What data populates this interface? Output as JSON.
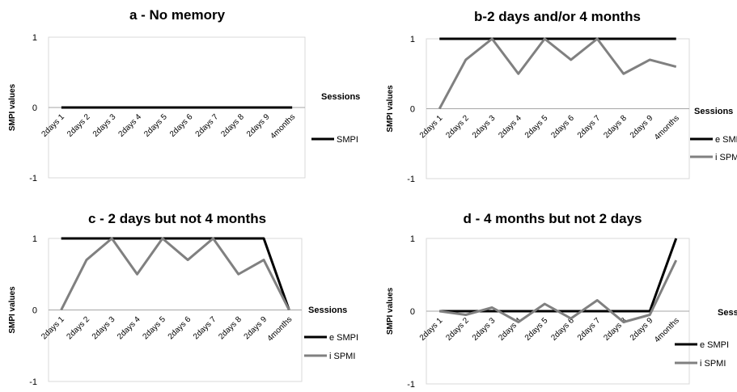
{
  "chart_data": [
    {
      "type": "line",
      "title": "a - No memory",
      "xlabel": "Sessions",
      "ylabel": "SMPI values",
      "categories": [
        "2days 1",
        "2days 2",
        "2days 3",
        "2days 4",
        "2days 5",
        "2days 6",
        "2days 7",
        "2days 8",
        "2days 9",
        "4months"
      ],
      "ylim": [
        -1,
        1
      ],
      "yticks": [
        1,
        0,
        -1
      ],
      "grid": false,
      "legend_position": "right",
      "series": [
        {
          "name": "SMPI",
          "color": "#000000",
          "values": [
            0,
            0,
            0,
            0,
            0,
            0,
            0,
            0,
            0,
            0
          ]
        }
      ]
    },
    {
      "type": "line",
      "title": "b-2 days and/or 4 months",
      "xlabel": "Sessions",
      "ylabel": "SMPI values",
      "categories": [
        "2days 1",
        "2days 2",
        "2days 3",
        "2days 4",
        "2days 5",
        "2days 6",
        "2days 7",
        "2days 8",
        "2days 9",
        "4months"
      ],
      "ylim": [
        -1,
        1
      ],
      "yticks": [
        1,
        0,
        -1
      ],
      "grid": false,
      "legend_position": "right",
      "series": [
        {
          "name": "e SMPI",
          "color": "#000000",
          "values": [
            1,
            1,
            1,
            1,
            1,
            1,
            1,
            1,
            1,
            1
          ]
        },
        {
          "name": "i SPMI",
          "color": "#808080",
          "values": [
            0,
            0.7,
            1,
            0.5,
            1,
            0.7,
            1,
            0.5,
            0.7,
            0.6
          ]
        }
      ]
    },
    {
      "type": "line",
      "title": "c - 2 days but not 4 months",
      "xlabel": "Sessions",
      "ylabel": "SMPI values",
      "categories": [
        "2days 1",
        "2days 2",
        "2days 3",
        "2days 4",
        "2days 5",
        "2days 6",
        "2days 7",
        "2days 8",
        "2days 9",
        "4months"
      ],
      "ylim": [
        -1,
        1
      ],
      "yticks": [
        1,
        0,
        -1
      ],
      "grid": false,
      "legend_position": "right",
      "series": [
        {
          "name": "e SMPI",
          "color": "#000000",
          "values": [
            1,
            1,
            1,
            1,
            1,
            1,
            1,
            1,
            1,
            0
          ]
        },
        {
          "name": "i SPMI",
          "color": "#808080",
          "values": [
            0,
            0.7,
            1,
            0.5,
            1,
            0.7,
            1,
            0.5,
            0.7,
            0
          ]
        }
      ]
    },
    {
      "type": "line",
      "title": "d - 4 months but not 2 days",
      "xlabel": "Sessions",
      "ylabel": "SMPI values",
      "categories": [
        "2days 1",
        "2days 2",
        "2days 3",
        "2days 4",
        "2days 5",
        "2days 6",
        "2days 7",
        "2days 8",
        "2days 9",
        "4months"
      ],
      "ylim": [
        -1,
        1
      ],
      "yticks": [
        1,
        0,
        -1
      ],
      "grid": false,
      "legend_position": "right",
      "series": [
        {
          "name": "e SMPI",
          "color": "#000000",
          "values": [
            0,
            0,
            0,
            0,
            0,
            0,
            0,
            0,
            0,
            1
          ]
        },
        {
          "name": "i SPMI",
          "color": "#808080",
          "values": [
            0,
            -0.05,
            0.05,
            -0.15,
            0.1,
            -0.1,
            0.15,
            -0.15,
            -0.05,
            0.7
          ]
        }
      ]
    }
  ]
}
